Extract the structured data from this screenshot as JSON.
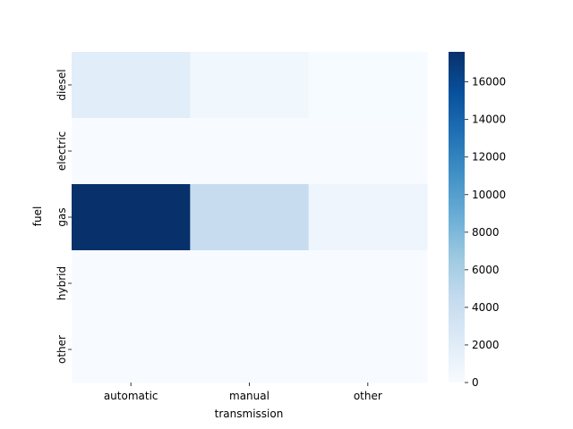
{
  "chart_data": {
    "type": "heatmap",
    "title": "",
    "xlabel": "transmission",
    "ylabel": "fuel",
    "x_categories": [
      "automatic",
      "manual",
      "other"
    ],
    "y_categories": [
      "diesel",
      "electric",
      "gas",
      "hybrid",
      "other"
    ],
    "values": [
      [
        1900,
        600,
        60
      ],
      [
        0,
        0,
        0
      ],
      [
        17600,
        4300,
        800
      ],
      [
        20,
        10,
        10
      ],
      [
        20,
        10,
        10
      ]
    ],
    "colorbar": {
      "min": 0,
      "max": 17600,
      "ticks": [
        0,
        2000,
        4000,
        6000,
        8000,
        10000,
        12000,
        14000,
        16000
      ],
      "colormap": "Blues",
      "low_color": "#f7fbff",
      "high_color": "#08306b"
    }
  }
}
